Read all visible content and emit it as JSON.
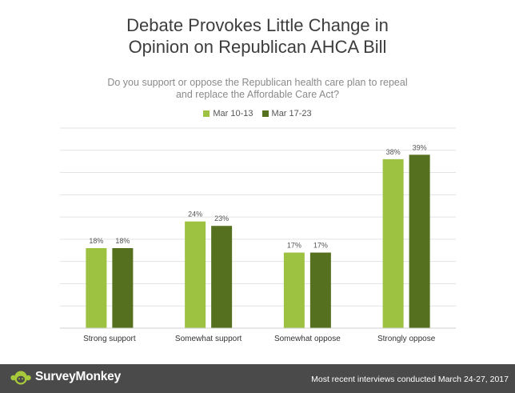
{
  "chart_data": {
    "type": "bar",
    "title": [
      "Debate Provokes Little Change in",
      "Opinion on Republican AHCA Bill"
    ],
    "subtitle": [
      "Do you support or oppose the Republican health care plan to repeal",
      "and replace the Affordable Care Act?"
    ],
    "categories": [
      "Strong support",
      "Somewhat support",
      "Somewhat oppose",
      "Strongly oppose"
    ],
    "series": [
      {
        "name": "Mar 10-13",
        "color": "#9dc141",
        "values": [
          18,
          24,
          17,
          38
        ]
      },
      {
        "name": "Mar 17-23",
        "color": "#55701f",
        "values": [
          18,
          23,
          17,
          39
        ]
      }
    ],
    "data_label_suffix": "%",
    "ylim": [
      0,
      45
    ],
    "grid": true,
    "legend_position": "top-center"
  },
  "footer": {
    "brand": "SurveyMonkey",
    "note": "Most recent interviews conducted March 24-27, 2017",
    "background": "#4a4a4a",
    "logo_icon": "surveymonkey-logo-icon"
  }
}
